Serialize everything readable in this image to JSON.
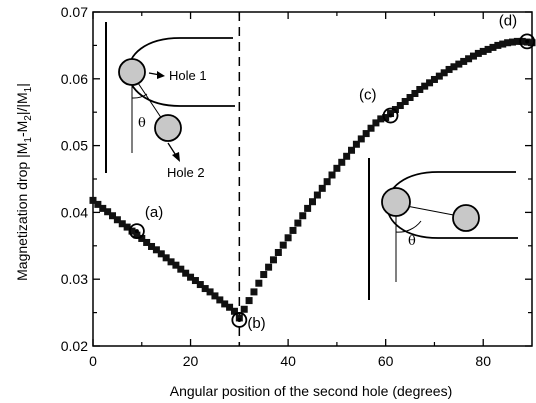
{
  "chart_data": {
    "type": "scatter",
    "xlabel": "Angular position of the second hole (degrees)",
    "ylabel": "Magnetization drop |M",
    "ylabel_sub1": "1",
    "ylabel_mid": "-M",
    "ylabel_sub2": "2",
    "ylabel_mid2": "|/|M",
    "ylabel_sub3": "1",
    "ylabel_end": "|",
    "xlim": [
      0,
      90
    ],
    "ylim": [
      0.02,
      0.07
    ],
    "xticks": [
      0,
      20,
      40,
      60,
      80
    ],
    "xtick_labels": [
      "0",
      "20",
      "40",
      "60",
      "80"
    ],
    "yticks": [
      0.02,
      0.03,
      0.04,
      0.05,
      0.06,
      0.07
    ],
    "ytick_labels": [
      "0.02",
      "0.03",
      "0.04",
      "0.05",
      "0.06",
      "0.07"
    ],
    "vline_x": 30,
    "marker": "square",
    "series": [
      {
        "x": [
          0,
          1,
          2,
          3,
          4,
          5,
          6,
          7,
          8,
          9,
          10,
          11,
          12,
          13,
          14,
          15,
          16,
          17,
          18,
          19,
          20,
          21,
          22,
          23,
          24,
          25,
          26,
          27,
          28,
          29,
          30,
          31,
          32,
          33,
          34,
          35,
          36,
          37,
          38,
          39,
          40,
          41,
          42,
          43,
          44,
          45,
          46,
          47,
          48,
          49,
          50,
          51,
          52,
          53,
          54,
          55,
          56,
          57,
          58,
          59,
          60,
          61,
          62,
          63,
          64,
          65,
          66,
          67,
          68,
          69,
          70,
          71,
          72,
          73,
          74,
          75,
          76,
          77,
          78,
          79,
          80,
          81,
          82,
          83,
          84,
          85,
          86,
          87,
          88,
          89,
          90
        ],
        "y": [
          0.0418,
          0.0412,
          0.0406,
          0.0401,
          0.0395,
          0.0389,
          0.0383,
          0.0378,
          0.0372,
          0.0366,
          0.0361,
          0.0355,
          0.0349,
          0.0344,
          0.0338,
          0.0332,
          0.0326,
          0.0321,
          0.0315,
          0.0309,
          0.0303,
          0.0298,
          0.0292,
          0.0286,
          0.0281,
          0.0275,
          0.0269,
          0.0263,
          0.0258,
          0.0252,
          0.0242,
          0.0255,
          0.0268,
          0.0281,
          0.0294,
          0.0307,
          0.0318,
          0.0329,
          0.034,
          0.0351,
          0.0362,
          0.0373,
          0.0384,
          0.0395,
          0.0406,
          0.0416,
          0.0426,
          0.0436,
          0.0446,
          0.0456,
          0.0466,
          0.0475,
          0.0484,
          0.0493,
          0.0502,
          0.051,
          0.0518,
          0.0526,
          0.0534,
          0.054,
          0.0542,
          0.0548,
          0.0554,
          0.056,
          0.0566,
          0.0572,
          0.0578,
          0.0584,
          0.0589,
          0.0594,
          0.0599,
          0.0604,
          0.0609,
          0.0614,
          0.0618,
          0.0622,
          0.0626,
          0.063,
          0.0634,
          0.0638,
          0.0641,
          0.0644,
          0.0647,
          0.065,
          0.0652,
          0.0654,
          0.0655,
          0.0656,
          0.0656,
          0.0655,
          0.0654
        ]
      }
    ],
    "annotations": [
      {
        "label": "(a)",
        "x": 9,
        "y": 0.0372
      },
      {
        "label": "(b)",
        "x": 30,
        "y": 0.0239
      },
      {
        "label": "(c)",
        "x": 61,
        "y": 0.0545
      },
      {
        "label": "(d)",
        "x": 89,
        "y": 0.0656
      }
    ]
  },
  "insets": {
    "left": {
      "hole1_label": "Hole 1",
      "hole2_label": "Hole 2",
      "theta": "θ"
    },
    "right": {
      "theta": "θ"
    }
  },
  "colors": {
    "hole_fill": "#c8c8c8",
    "marker": "#111111",
    "axis": "#000000"
  }
}
